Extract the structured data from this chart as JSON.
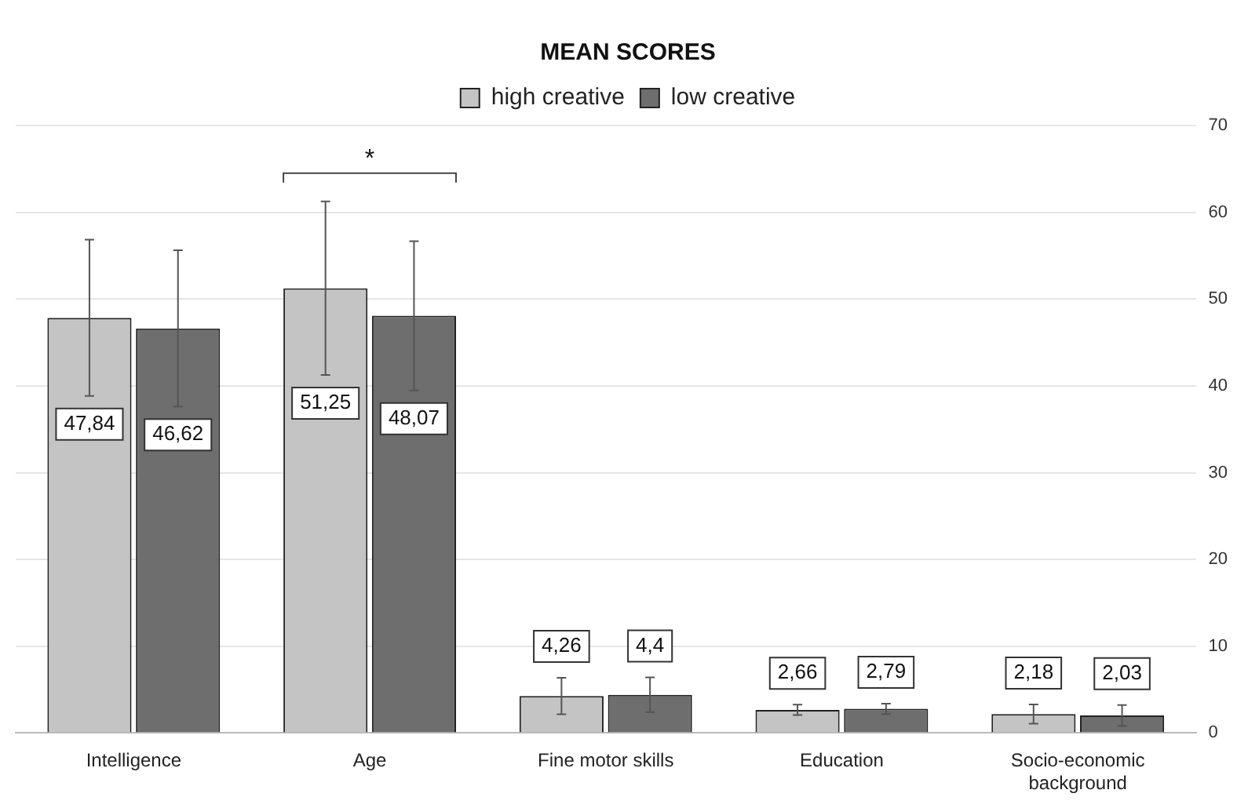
{
  "chart_data": {
    "type": "bar",
    "title": "MEAN SCORES",
    "categories": [
      "Intelligence",
      "Age",
      "Fine motor skills",
      "Education",
      "Socio-economic background"
    ],
    "series": [
      {
        "name": "high creative",
        "color": "#c4c4c4",
        "values": [
          47.84,
          51.25,
          4.26,
          2.66,
          2.18
        ],
        "errors": [
          9,
          10,
          2.1,
          0.6,
          1.1
        ],
        "value_labels": [
          "47,84",
          "51,25",
          "4,26",
          "2,66",
          "2,18"
        ]
      },
      {
        "name": "low creative",
        "color": "#6e6e6e",
        "values": [
          46.62,
          48.07,
          4.4,
          2.79,
          2.03
        ],
        "errors": [
          9,
          8.6,
          2,
          0.6,
          1.2
        ],
        "value_labels": [
          "46,62",
          "48,07",
          "4,4",
          "2,79",
          "2,03"
        ]
      }
    ],
    "ylim": [
      0,
      70
    ],
    "yticks": [
      0,
      10,
      20,
      30,
      40,
      50,
      60,
      70
    ],
    "grid": "y",
    "legend": "top",
    "annotations": [
      "*"
    ]
  }
}
